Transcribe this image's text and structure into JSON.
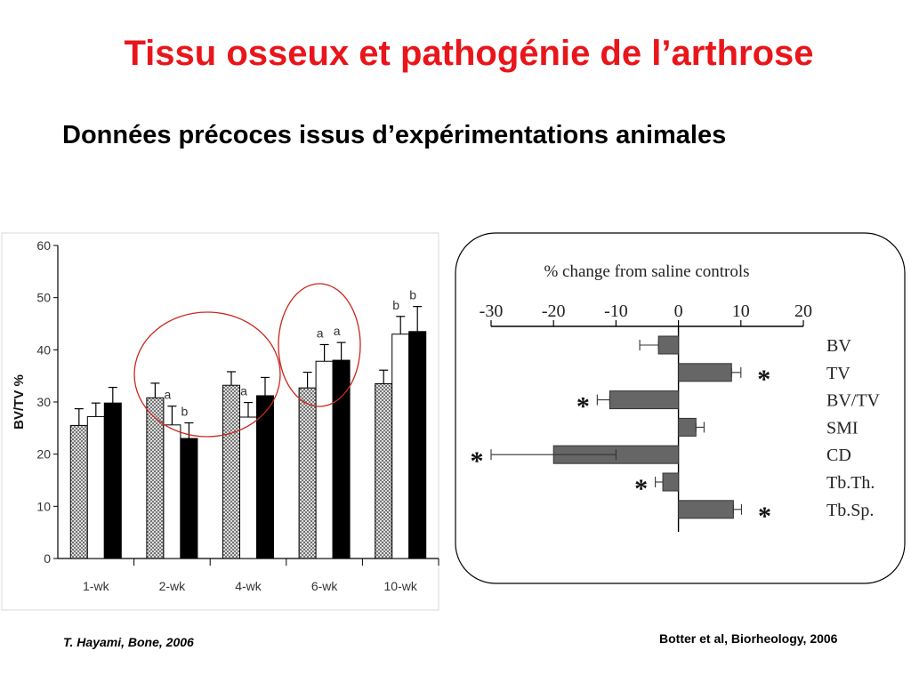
{
  "title": "Tissu osseux et pathogénie de l’arthrose",
  "subtitle": "Données précoces issus d’expérimentations animales",
  "citations": {
    "left": "T. Hayami, Bone, 2006",
    "right": "Botter et al, Biorheology, 2006"
  },
  "colors": {
    "title": "#e8161b",
    "circle": "#c8281e",
    "bar_dark": "#666666",
    "hatch": "#8a8a8a",
    "black_bar": "#000000",
    "white_bar": "#ffffff"
  },
  "chart_data": [
    {
      "type": "bar",
      "ylabel": "BV/TV %",
      "xlabel": "",
      "ylim": [
        0,
        60
      ],
      "yticks": [
        "0",
        "10",
        "20",
        "30",
        "40",
        "50",
        "60"
      ],
      "categories": [
        "1-wk",
        "2-wk",
        "4-wk",
        "6-wk",
        "10-wk"
      ],
      "series": [
        {
          "style": "hatched",
          "values": [
            25.5,
            30.8,
            33.2,
            32.7,
            33.5
          ],
          "errors": [
            3.2,
            2.8,
            2.6,
            3.0,
            2.6
          ]
        },
        {
          "style": "white",
          "values": [
            27.2,
            25.6,
            27.1,
            37.8,
            43.0
          ],
          "errors": [
            2.6,
            3.6,
            2.8,
            3.2,
            3.4
          ]
        },
        {
          "style": "black",
          "values": [
            29.8,
            23.0,
            31.2,
            38.0,
            43.5
          ],
          "errors": [
            3.0,
            3.0,
            3.5,
            3.4,
            4.8
          ]
        }
      ],
      "annotations": [
        {
          "category": "2-wk",
          "series": 1,
          "text": "a"
        },
        {
          "category": "2-wk",
          "series": 2,
          "text": "b"
        },
        {
          "category": "4-wk",
          "series": 1,
          "text": "a"
        },
        {
          "category": "6-wk",
          "series": 1,
          "text": "a"
        },
        {
          "category": "6-wk",
          "series": 2,
          "text": "a"
        },
        {
          "category": "10-wk",
          "series": 1,
          "text": "b"
        },
        {
          "category": "10-wk",
          "series": 2,
          "text": "b"
        }
      ],
      "highlight_circles": [
        "2-wk / 4-wk",
        "6-wk"
      ]
    },
    {
      "type": "bar",
      "orientation": "horizontal",
      "title": "% change from saline controls",
      "xlim": [
        -30,
        20
      ],
      "xticks": [
        "-30",
        "-20",
        "-10",
        "0",
        "10",
        "20"
      ],
      "categories": [
        "BV",
        "TV",
        "BV/TV",
        "SMI",
        "CD",
        "Tb.Th.",
        "Tb.Sp."
      ],
      "values": [
        -3.2,
        8.5,
        -11.0,
        2.8,
        -20.0,
        -2.5,
        8.8
      ],
      "errors": [
        3.0,
        1.5,
        2.0,
        1.3,
        10.0,
        1.2,
        1.3
      ],
      "significant": [
        false,
        true,
        true,
        false,
        true,
        true,
        true
      ],
      "significance_symbol": "*"
    }
  ]
}
